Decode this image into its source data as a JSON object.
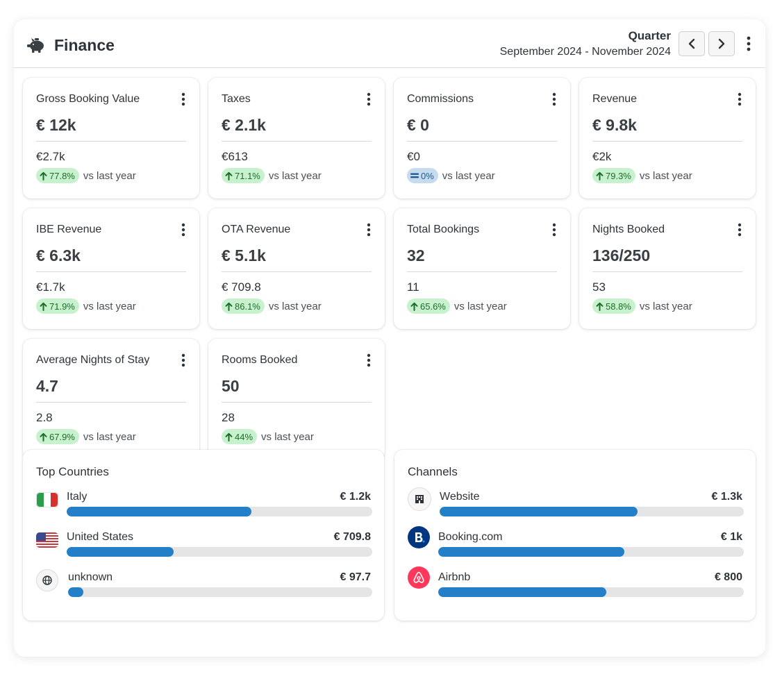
{
  "header": {
    "title": "Finance",
    "period_type": "Quarter",
    "period_range": "September 2024 - November 2024"
  },
  "kpis": [
    {
      "label": "Gross Booking Value",
      "value": "€ 12k",
      "previous": "€2.7k",
      "change": "77.8%",
      "trend": "up",
      "compare_label": "vs last year"
    },
    {
      "label": "Taxes",
      "value": "€ 2.1k",
      "previous": "€613",
      "change": "71.1%",
      "trend": "up",
      "compare_label": "vs last year"
    },
    {
      "label": "Commissions",
      "value": "€ 0",
      "previous": "€0",
      "change": "0%",
      "trend": "flat",
      "compare_label": "vs last year"
    },
    {
      "label": "Revenue",
      "value": "€ 9.8k",
      "previous": "€2k",
      "change": "79.3%",
      "trend": "up",
      "compare_label": "vs last year"
    },
    {
      "label": "IBE Revenue",
      "value": "€ 6.3k",
      "previous": "€1.7k",
      "change": "71.9%",
      "trend": "up",
      "compare_label": "vs last year"
    },
    {
      "label": "OTA Revenue",
      "value": "€ 5.1k",
      "previous": "€ 709.8",
      "change": "86.1%",
      "trend": "up",
      "compare_label": "vs last year"
    },
    {
      "label": "Total Bookings",
      "value": "32",
      "previous": "11",
      "change": "65.6%",
      "trend": "up",
      "compare_label": "vs last year"
    },
    {
      "label": "Nights Booked",
      "value": "136/250",
      "previous": "53",
      "change": "58.8%",
      "trend": "up",
      "compare_label": "vs last year"
    },
    {
      "label": "Average Nights of Stay",
      "value": "4.7",
      "previous": "2.8",
      "change": "67.9%",
      "trend": "up",
      "compare_label": "vs last year"
    },
    {
      "label": "Rooms Booked",
      "value": "50",
      "previous": "28",
      "change": "44%",
      "trend": "up",
      "compare_label": "vs last year"
    }
  ],
  "top_countries": {
    "title": "Top Countries",
    "items": [
      {
        "name": "Italy",
        "value": "€ 1.2k",
        "share": 0.605,
        "icon": "italy-flag-icon"
      },
      {
        "name": "United States",
        "value": "€ 709.8",
        "share": 0.35,
        "icon": "us-flag-icon"
      },
      {
        "name": "unknown",
        "value": "€ 97.7",
        "share": 0.05,
        "icon": "globe-icon"
      }
    ]
  },
  "channels": {
    "title": "Channels",
    "items": [
      {
        "name": "Website",
        "value": "€ 1.3k",
        "share": 0.65,
        "icon": "hotel-icon"
      },
      {
        "name": "Booking.com",
        "value": "€ 1k",
        "share": 0.61,
        "icon": "booking-logo-icon"
      },
      {
        "name": "Airbnb",
        "value": "€ 800",
        "share": 0.55,
        "icon": "airbnb-logo-icon"
      }
    ]
  },
  "colors": {
    "accent": "#2380c8",
    "badge_up_bg": "#c8f2cd",
    "badge_up_fg": "#1d6b2a",
    "badge_flat_bg": "#c5dbef",
    "booking_brand": "#003580",
    "airbnb_brand": "#ff385c"
  }
}
